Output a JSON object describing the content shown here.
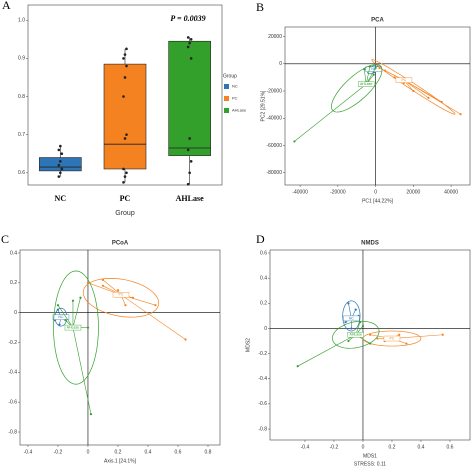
{
  "chart_data": [
    {
      "type": "box",
      "panel_label": "A",
      "xlabel": "Group",
      "annotation": "P = 0.0039",
      "categories": [
        "NC",
        "PC",
        "AHLase"
      ],
      "colors": [
        "#2e75b6",
        "#f58220",
        "#33a02c"
      ],
      "boxes": [
        {
          "whisker_low": 0.59,
          "q1": 0.605,
          "median": 0.615,
          "q3": 0.64,
          "whisker_high": 0.67
        },
        {
          "whisker_low": 0.575,
          "q1": 0.61,
          "median": 0.675,
          "q3": 0.885,
          "whisker_high": 0.925
        },
        {
          "whisker_low": 0.57,
          "q1": 0.645,
          "median": 0.665,
          "q3": 0.945,
          "whisker_high": 0.955
        }
      ],
      "points": [
        [
          0.59,
          0.6,
          0.61,
          0.62,
          0.63,
          0.65,
          0.66,
          0.67
        ],
        [
          0.575,
          0.59,
          0.6,
          0.61,
          0.69,
          0.7,
          0.8,
          0.85,
          0.88,
          0.9,
          0.91,
          0.925
        ],
        [
          0.57,
          0.6,
          0.63,
          0.66,
          0.69,
          0.9,
          0.93,
          0.94,
          0.95,
          0.955
        ]
      ],
      "ylim": [
        0.568,
        1.04
      ],
      "yticks": [
        0.6,
        0.7,
        0.8,
        0.9,
        {
          "value": 1,
          "label": "1.0"
        }
      ],
      "legend": {
        "title": "Group",
        "position": "right"
      }
    },
    {
      "type": "scatter",
      "panel_label": "B",
      "title": "PCA",
      "xlabel": "PC1 [44.22%]",
      "ylabel": "PC2 [29.51%]",
      "xlim": [
        -48000,
        50000
      ],
      "ylim": [
        -89000,
        27000
      ],
      "xticks": [
        -40000,
        -20000,
        0,
        20000,
        40000
      ],
      "yticks": [
        20000,
        0,
        -20000,
        -40000,
        -60000,
        -80000
      ],
      "series": [
        {
          "name": "NC",
          "color": "#2e75b6",
          "x": [
            -2000,
            -1000,
            0,
            -3000,
            1000
          ],
          "y": [
            -3000,
            -6000,
            -4000,
            -5000,
            -2000
          ],
          "centroid": [
            -1000,
            -4000
          ],
          "ellipse": {
            "center": [
              -1000,
              -4000
            ],
            "axes": [
              [
                3000,
                3000
              ],
              [
                1500,
                -1500
              ]
            ]
          }
        },
        {
          "name": "PC",
          "color": "#f58220",
          "x": [
            2000,
            5000,
            10000,
            15000,
            20000,
            28000,
            35000,
            45000
          ],
          "y": [
            -3000,
            -5000,
            -10000,
            -14000,
            -20000,
            -25000,
            -28000,
            -37000
          ],
          "centroid": [
            15000,
            -12000
          ],
          "ellipse": {
            "center": [
              20000,
              -17000
            ],
            "axes": [
              [
                22000,
                -20000
              ],
              [
                1500,
                1500
              ]
            ]
          }
        },
        {
          "name": "AHLase",
          "color": "#33a02c",
          "x": [
            -43000,
            -3000,
            -6000,
            0,
            -1000
          ],
          "y": [
            -57000,
            -2000,
            -4000,
            -3000,
            -8000
          ],
          "centroid": [
            -5000,
            -15000
          ],
          "ellipse": {
            "center": [
              -10000,
              -18000
            ],
            "axes": [
              [
                12000,
                17000
              ],
              [
                -6000,
                4000
              ]
            ]
          }
        }
      ]
    },
    {
      "type": "scatter",
      "panel_label": "C",
      "title": "PCoA",
      "xlabel": "Axis.1 [24.1%]",
      "xlim": [
        -0.453,
        0.88
      ],
      "ylim": [
        -0.887,
        0.42
      ],
      "xticks": [
        -0.4,
        -0.2,
        0,
        0.2,
        0.4,
        0.6,
        0.8
      ],
      "yticks": [
        0.4,
        0.2,
        0,
        -0.2,
        -0.4,
        -0.6,
        -0.8
      ],
      "series": [
        {
          "name": "NC",
          "color": "#2e75b6",
          "x": [
            -0.22,
            -0.2,
            -0.18,
            -0.16,
            -0.19
          ],
          "y": [
            -0.05,
            0.02,
            -0.02,
            -0.04,
            -0.08
          ],
          "centroid": [
            -0.18,
            -0.03
          ],
          "ellipse": {
            "center": [
              -0.18,
              -0.03
            ],
            "axes": [
              [
                0.04,
                0
              ],
              [
                0,
                0.06
              ]
            ]
          }
        },
        {
          "name": "PC",
          "color": "#f58220",
          "x": [
            0.0,
            0.1,
            0.2,
            0.3,
            0.45,
            0.65,
            0.1,
            0.25
          ],
          "y": [
            0.2,
            0.18,
            0.15,
            0.1,
            0.05,
            -0.18,
            0.22,
            0.05
          ],
          "centroid": [
            0.22,
            0.12
          ],
          "ellipse": {
            "center": [
              0.22,
              0.1
            ],
            "axes": [
              [
                0.25,
                -0.05
              ],
              [
                0.03,
                0.12
              ]
            ]
          }
        },
        {
          "name": "AHLase",
          "color": "#33a02c",
          "x": [
            0.02,
            -0.2,
            -0.05,
            0.0,
            -0.15,
            -0.1
          ],
          "y": [
            -0.68,
            0.05,
            0.1,
            -0.1,
            -0.05,
            0.08
          ],
          "centroid": [
            -0.1,
            -0.1
          ],
          "ellipse": {
            "center": [
              -0.08,
              -0.1
            ],
            "axes": [
              [
                0.15,
                0
              ],
              [
                0,
                0.38
              ]
            ]
          }
        }
      ]
    },
    {
      "type": "scatter",
      "panel_label": "D",
      "title": "NMDS",
      "xlabel": "MDS1",
      "ylabel": "MDS2",
      "note": "STRESS: 0.11",
      "xlim": [
        -0.641,
        0.738
      ],
      "ylim": [
        -0.887,
        0.624
      ],
      "xticks": [
        -0.4,
        -0.2,
        0,
        0.2,
        0.4,
        0.6
      ],
      "yticks": [
        0.6,
        0.4,
        0.2,
        0,
        -0.2,
        -0.4,
        -0.6,
        -0.8
      ],
      "series": [
        {
          "name": "NC",
          "color": "#2e75b6",
          "x": [
            -0.1,
            -0.05,
            -0.12,
            -0.08,
            -0.03
          ],
          "y": [
            0.2,
            0.15,
            0.05,
            0,
            0.1
          ],
          "centroid": [
            -0.08,
            0.08
          ],
          "ellipse": {
            "center": [
              -0.08,
              0.1
            ],
            "axes": [
              [
                0.06,
                0
              ],
              [
                0,
                0.12
              ]
            ]
          }
        },
        {
          "name": "PC",
          "color": "#f58220",
          "x": [
            0.05,
            0.15,
            0.25,
            0.55,
            0.3,
            0.1
          ],
          "y": [
            -0.05,
            -0.1,
            -0.05,
            -0.05,
            -0.12,
            -0.08
          ],
          "centroid": [
            0.2,
            -0.08
          ],
          "ellipse": {
            "center": [
              0.2,
              -0.08
            ],
            "axes": [
              [
                0.2,
                0
              ],
              [
                0,
                0.06
              ]
            ]
          }
        },
        {
          "name": "AHLase",
          "color": "#33a02c",
          "x": [
            -0.45,
            0.0,
            -0.1,
            0.05,
            -0.02
          ],
          "y": [
            -0.3,
            0.02,
            -0.1,
            -0.12,
            0.05
          ],
          "centroid": [
            -0.05,
            -0.05
          ],
          "ellipse": {
            "center": [
              -0.05,
              -0.05
            ],
            "axes": [
              [
                0.16,
                0.04
              ],
              [
                -0.02,
                0.1
              ]
            ]
          }
        }
      ]
    }
  ]
}
